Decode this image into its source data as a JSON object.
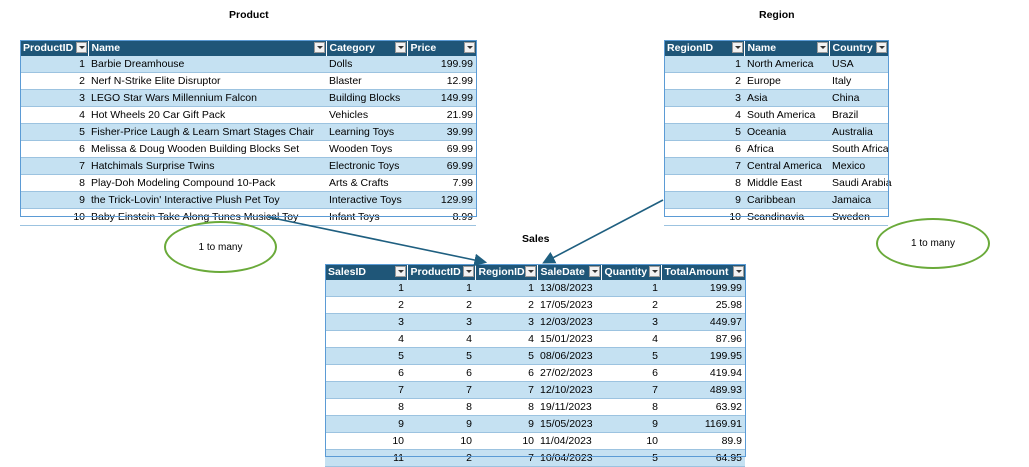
{
  "product": {
    "title": "Product",
    "headers": [
      "ProductID",
      "Name",
      "Category",
      "Price"
    ],
    "rows": [
      [
        "1",
        "Barbie Dreamhouse",
        "Dolls",
        "199.99"
      ],
      [
        "2",
        "Nerf N-Strike Elite Disruptor",
        "Blaster",
        "12.99"
      ],
      [
        "3",
        "LEGO Star Wars Millennium Falcon",
        "Building Blocks",
        "149.99"
      ],
      [
        "4",
        "Hot Wheels 20 Car Gift Pack",
        "Vehicles",
        "21.99"
      ],
      [
        "5",
        "Fisher-Price Laugh & Learn Smart Stages Chair",
        "Learning Toys",
        "39.99"
      ],
      [
        "6",
        "Melissa & Doug Wooden Building Blocks Set",
        "Wooden Toys",
        "69.99"
      ],
      [
        "7",
        "Hatchimals Surprise Twins",
        "Electronic Toys",
        "69.99"
      ],
      [
        "8",
        "Play-Doh Modeling Compound 10-Pack",
        "Arts & Crafts",
        "7.99"
      ],
      [
        "9",
        "the Trick-Lovin' Interactive Plush Pet Toy",
        "Interactive Toys",
        "129.99"
      ],
      [
        "10",
        "Baby Einstein Take Along Tunes Musical Toy",
        "Infant Toys",
        "8.99"
      ]
    ]
  },
  "region": {
    "title": "Region",
    "headers": [
      "RegionID",
      "Name",
      "Country"
    ],
    "rows": [
      [
        "1",
        "North America",
        "USA"
      ],
      [
        "2",
        "Europe",
        "Italy"
      ],
      [
        "3",
        "Asia",
        "China"
      ],
      [
        "4",
        "South America",
        "Brazil"
      ],
      [
        "5",
        "Oceania",
        "Australia"
      ],
      [
        "6",
        "Africa",
        "South Africa"
      ],
      [
        "7",
        "Central America",
        "Mexico"
      ],
      [
        "8",
        "Middle East",
        "Saudi Arabia"
      ],
      [
        "9",
        "Caribbean",
        "Jamaica"
      ],
      [
        "10",
        "Scandinavia",
        "Sweden"
      ]
    ]
  },
  "sales": {
    "title": "Sales",
    "headers": [
      "SalesID",
      "ProductID",
      "RegionID",
      "SaleDate",
      "Quantity",
      "TotalAmount"
    ],
    "rows": [
      [
        "1",
        "1",
        "1",
        "13/08/2023",
        "1",
        "199.99"
      ],
      [
        "2",
        "2",
        "2",
        "17/05/2023",
        "2",
        "25.98"
      ],
      [
        "3",
        "3",
        "3",
        "12/03/2023",
        "3",
        "449.97"
      ],
      [
        "4",
        "4",
        "4",
        "15/01/2023",
        "4",
        "87.96"
      ],
      [
        "5",
        "5",
        "5",
        "08/06/2023",
        "5",
        "199.95"
      ],
      [
        "6",
        "6",
        "6",
        "27/02/2023",
        "6",
        "419.94"
      ],
      [
        "7",
        "7",
        "7",
        "12/10/2023",
        "7",
        "489.93"
      ],
      [
        "8",
        "8",
        "8",
        "19/11/2023",
        "8",
        "63.92"
      ],
      [
        "9",
        "9",
        "9",
        "15/05/2023",
        "9",
        "1169.91"
      ],
      [
        "10",
        "10",
        "10",
        "11/04/2023",
        "10",
        "89.9"
      ],
      [
        "11",
        "2",
        "7",
        "10/04/2023",
        "5",
        "64.95"
      ]
    ]
  },
  "relationships": {
    "left_label": "1 to many",
    "right_label": "1 to many"
  }
}
